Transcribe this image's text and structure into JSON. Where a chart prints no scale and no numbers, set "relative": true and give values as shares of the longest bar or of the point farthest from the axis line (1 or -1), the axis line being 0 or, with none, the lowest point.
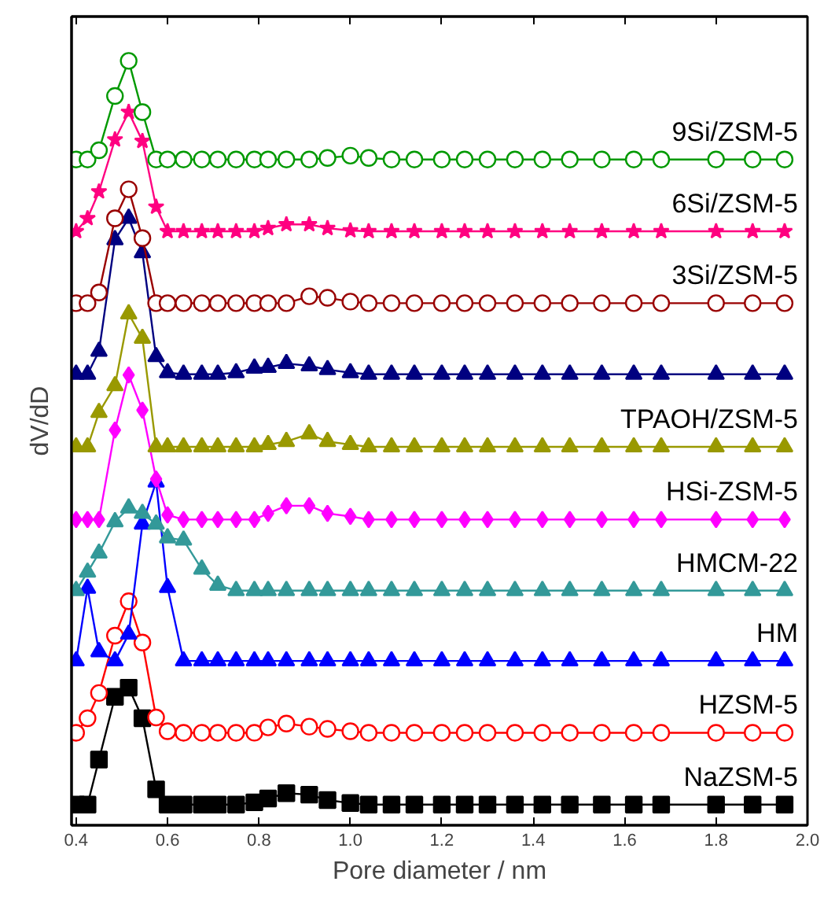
{
  "chart_data": {
    "type": "line",
    "relative": true,
    "xlabel": "Pore diameter / nm",
    "ylabel": "dV/dD",
    "x": [
      0.4,
      0.425,
      0.45,
      0.485,
      0.515,
      0.545,
      0.575,
      0.6,
      0.635,
      0.675,
      0.71,
      0.75,
      0.79,
      0.82,
      0.86,
      0.91,
      0.95,
      1.0,
      1.04,
      1.09,
      1.14,
      1.2,
      1.25,
      1.3,
      1.36,
      1.42,
      1.48,
      1.55,
      1.62,
      1.68,
      1.8,
      1.88,
      1.95
    ],
    "xlim": [
      0.39,
      2.0
    ],
    "xticks": [
      0.4,
      0.6,
      0.8,
      {
        "value": 1.0,
        "label": "1.0"
      },
      1.2,
      1.4,
      1.6,
      1.8,
      {
        "value": 2.0,
        "label": "2.0"
      }
    ],
    "tick_labels": "x",
    "grid": false,
    "line_style": "solid",
    "series": [
      {
        "name": "NaZSM-5",
        "color": "#000000",
        "marker": "square",
        "values": [
          0.027,
          0.027,
          0.086,
          0.168,
          0.18,
          0.14,
          0.047,
          0.027,
          0.027,
          0.027,
          0.027,
          0.027,
          0.03,
          0.035,
          0.042,
          0.04,
          0.033,
          0.029,
          0.027,
          0.027,
          0.027,
          0.027,
          0.027,
          0.027,
          0.027,
          0.027,
          0.027,
          0.027,
          0.027,
          0.027,
          0.027,
          0.027,
          0.027
        ]
      },
      {
        "name": "HZSM-5",
        "color": "#ff0000",
        "marker": "circle",
        "values": [
          0.121,
          0.14,
          0.173,
          0.248,
          0.293,
          0.239,
          0.141,
          0.123,
          0.121,
          0.121,
          0.121,
          0.121,
          0.121,
          0.128,
          0.133,
          0.129,
          0.126,
          0.123,
          0.121,
          0.121,
          0.121,
          0.121,
          0.121,
          0.121,
          0.121,
          0.121,
          0.121,
          0.121,
          0.121,
          0.121,
          0.121,
          0.121,
          0.121
        ]
      },
      {
        "name": "HM",
        "color": "#0000ff",
        "marker": "triangle",
        "values": [
          0.215,
          0.31,
          0.227,
          0.215,
          0.25,
          0.394,
          0.449,
          0.311,
          0.215,
          0.215,
          0.215,
          0.215,
          0.215,
          0.215,
          0.215,
          0.215,
          0.215,
          0.215,
          0.215,
          0.215,
          0.215,
          0.215,
          0.215,
          0.215,
          0.215,
          0.215,
          0.215,
          0.215,
          0.215,
          0.215,
          0.215,
          0.215,
          0.215
        ]
      },
      {
        "name": "HMCM-22",
        "color": "#339999",
        "marker": "triangle",
        "values": [
          0.307,
          0.331,
          0.356,
          0.397,
          0.415,
          0.408,
          0.394,
          0.376,
          0.373,
          0.335,
          0.314,
          0.307,
          0.307,
          0.307,
          0.307,
          0.307,
          0.307,
          0.307,
          0.307,
          0.307,
          0.307,
          0.307,
          0.307,
          0.307,
          0.307,
          0.307,
          0.307,
          0.307,
          0.307,
          0.307,
          0.307,
          0.307,
          0.307
        ]
      },
      {
        "name": "HSi-ZSM-5",
        "color": "#ff00ff",
        "marker": "diamond",
        "values": [
          0.4,
          0.4,
          0.4,
          0.517,
          0.589,
          0.543,
          0.453,
          0.406,
          0.4,
          0.4,
          0.4,
          0.4,
          0.4,
          0.408,
          0.418,
          0.418,
          0.408,
          0.404,
          0.4,
          0.4,
          0.4,
          0.4,
          0.4,
          0.4,
          0.4,
          0.4,
          0.4,
          0.4,
          0.4,
          0.4,
          0.4,
          0.4,
          0.4
        ]
      },
      {
        "name": "TPAOH/ZSM-5",
        "color": "#999900",
        "marker": "triangle",
        "values": [
          0.495,
          0.495,
          0.54,
          0.575,
          0.669,
          0.637,
          0.495,
          0.495,
          0.495,
          0.495,
          0.495,
          0.495,
          0.495,
          0.498,
          0.502,
          0.512,
          0.502,
          0.498,
          0.495,
          0.495,
          0.495,
          0.495,
          0.495,
          0.495,
          0.495,
          0.495,
          0.495,
          0.495,
          0.495,
          0.495,
          0.495,
          0.495,
          0.495
        ]
      },
      {
        "color": "#000080",
        "marker": "triangle",
        "values": [
          0.59,
          0.59,
          0.62,
          0.766,
          0.794,
          0.749,
          0.613,
          0.592,
          0.59,
          0.59,
          0.59,
          0.592,
          0.598,
          0.599,
          0.604,
          0.601,
          0.596,
          0.592,
          0.59,
          0.59,
          0.59,
          0.59,
          0.59,
          0.59,
          0.59,
          0.59,
          0.59,
          0.59,
          0.59,
          0.59,
          0.59,
          0.59,
          0.59
        ]
      },
      {
        "name": "3Si/ZSM-5",
        "color": "#990000",
        "marker": "circle",
        "values": [
          0.683,
          0.683,
          0.697,
          0.794,
          0.832,
          0.768,
          0.683,
          0.683,
          0.683,
          0.683,
          0.683,
          0.683,
          0.683,
          0.683,
          0.683,
          0.692,
          0.69,
          0.685,
          0.683,
          0.683,
          0.683,
          0.683,
          0.683,
          0.683,
          0.683,
          0.683,
          0.683,
          0.683,
          0.683,
          0.683,
          0.683,
          0.683,
          0.683
        ]
      },
      {
        "name": "6Si/ZSM-5",
        "color": "#ff0080",
        "marker": "star",
        "values": [
          0.777,
          0.794,
          0.829,
          0.897,
          0.933,
          0.895,
          0.809,
          0.777,
          0.777,
          0.777,
          0.777,
          0.777,
          0.777,
          0.781,
          0.786,
          0.786,
          0.781,
          0.778,
          0.777,
          0.777,
          0.777,
          0.777,
          0.777,
          0.777,
          0.777,
          0.777,
          0.777,
          0.777,
          0.777,
          0.777,
          0.777,
          0.777,
          0.777
        ]
      },
      {
        "name": "9Si/ZSM-5",
        "color": "#009900",
        "marker": "circle",
        "values": [
          0.871,
          0.871,
          0.883,
          0.954,
          1.0,
          0.933,
          0.871,
          0.871,
          0.871,
          0.871,
          0.871,
          0.871,
          0.871,
          0.871,
          0.871,
          0.871,
          0.873,
          0.876,
          0.873,
          0.871,
          0.871,
          0.871,
          0.871,
          0.871,
          0.871,
          0.871,
          0.871,
          0.871,
          0.871,
          0.871,
          0.871,
          0.871,
          0.871
        ]
      }
    ]
  }
}
